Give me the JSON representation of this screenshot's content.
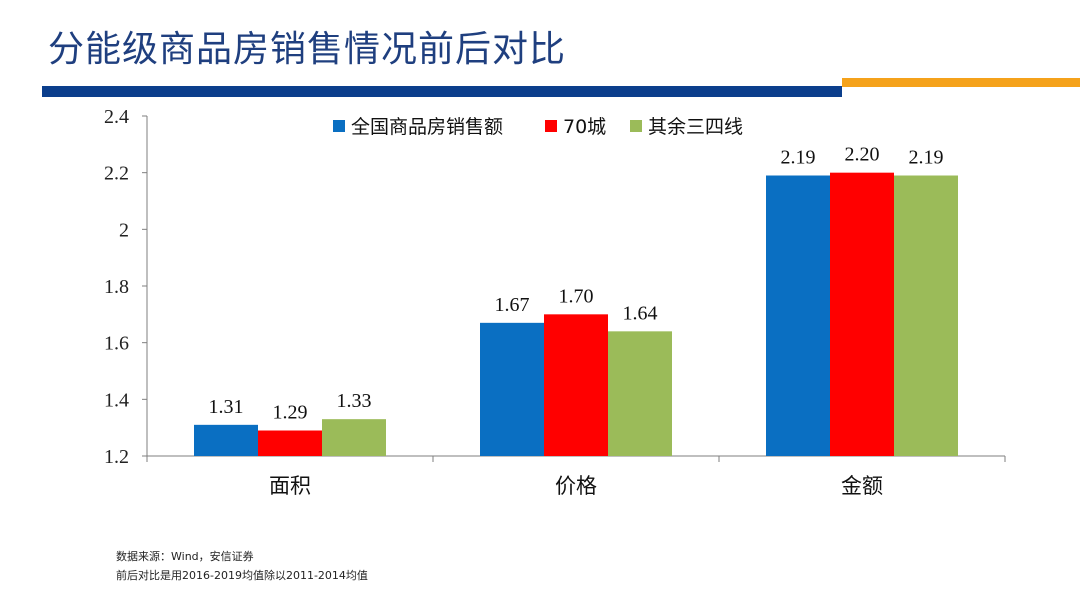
{
  "title": "分能级商品房销售情况前后对比",
  "colors": {
    "title": "#1f3f7f",
    "rule_blue": "#0b3e8c",
    "rule_orange": "#f5a21b",
    "series": [
      "#0a6fc2",
      "#ff0000",
      "#9bbb59"
    ]
  },
  "chart_data": {
    "type": "bar",
    "categories": [
      "面积",
      "价格",
      "金额"
    ],
    "series": [
      {
        "name": "全国商品房销售额",
        "values": [
          1.31,
          1.67,
          2.19
        ],
        "labels": [
          "1.31",
          "1.67",
          "2.19"
        ]
      },
      {
        "name": "70城",
        "values": [
          1.29,
          1.7,
          2.2
        ],
        "labels": [
          "1.29",
          "1.70",
          "2.20"
        ]
      },
      {
        "name": "其余三四线",
        "values": [
          1.33,
          1.64,
          2.19
        ],
        "labels": [
          "1.33",
          "1.64",
          "2.19"
        ]
      }
    ],
    "ylim": [
      1.2,
      2.4
    ],
    "yticks": [
      "1.2",
      "1.4",
      "1.6",
      "1.8",
      "2",
      "2.2",
      "2.4"
    ],
    "grid": false,
    "legend": "top-center"
  },
  "footnotes": {
    "source": "数据来源：Wind，安信证券",
    "note": "前后对比是用2016-2019均值除以2011-2014均值"
  }
}
